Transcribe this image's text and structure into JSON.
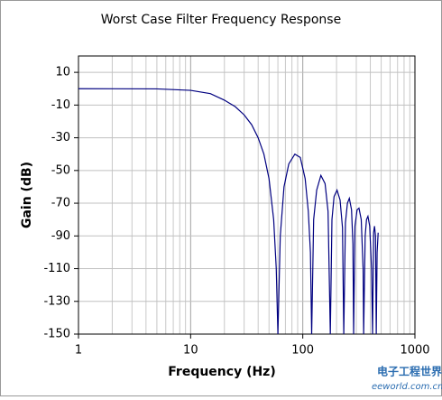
{
  "chart_data": {
    "type": "line",
    "title": "Worst Case Filter Frequency Response",
    "x_label": "Frequency (Hz)",
    "y_label": "Gain (dB)",
    "watermark": "电子工程世界",
    "watermark_url": "eeworld.com.cn",
    "log_x": true,
    "grid": true,
    "xlim": [
      1,
      1000
    ],
    "xticks": [
      1,
      10,
      100,
      1000
    ],
    "xticks_minor": [
      2,
      3,
      4,
      5,
      6,
      7,
      8,
      9,
      20,
      30,
      40,
      50,
      60,
      70,
      80,
      90,
      200,
      300,
      400,
      500,
      600,
      700,
      800,
      900
    ],
    "ylim": [
      -150,
      20
    ],
    "yticks": [
      -150,
      -130,
      -110,
      -90,
      -70,
      -50,
      -30,
      -10,
      10
    ],
    "series": [
      {
        "name": "Gain",
        "color": "#000080",
        "x": [
          1,
          5,
          10,
          15,
          20,
          25,
          30,
          35,
          40,
          45,
          50,
          55,
          58,
          60,
          63,
          68,
          75,
          85,
          95,
          105,
          112,
          117,
          120,
          125,
          133,
          145,
          158,
          168,
          176,
          182,
          190,
          202,
          215,
          226,
          232,
          240,
          250,
          260,
          272,
          280,
          284,
          292,
          305,
          317,
          332,
          345,
          349,
          360,
          370,
          381,
          395,
          410,
          419,
          428,
          436,
          445,
          452,
          460,
          470
        ],
        "values": [
          0,
          -0.1,
          -1,
          -3,
          -7,
          -11,
          -16,
          -22,
          -30,
          -40,
          -55,
          -80,
          -110,
          -150,
          -90,
          -60,
          -46,
          -40,
          -42,
          -55,
          -75,
          -100,
          -150,
          -80,
          -62,
          -53,
          -58,
          -75,
          -150,
          -80,
          -66,
          -62,
          -68,
          -85,
          -150,
          -82,
          -70,
          -67,
          -74,
          -95,
          -150,
          -84,
          -74,
          -73,
          -80,
          -110,
          -150,
          -90,
          -80,
          -78,
          -84,
          -110,
          -150,
          -88,
          -84,
          -90,
          -150,
          -100,
          -88
        ]
      }
    ]
  }
}
